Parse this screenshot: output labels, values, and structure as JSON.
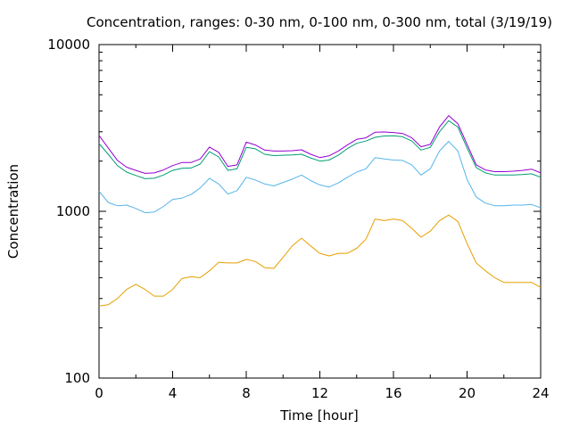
{
  "chart_data": {
    "type": "line",
    "title": "Concentration, ranges: 0-30 nm, 0-100 nm, 0-300 nm, total (3/19/19)",
    "xlabel": "Time [hour]",
    "ylabel": "Concentration",
    "xlim": [
      0,
      24
    ],
    "ylim": [
      100,
      10000
    ],
    "yscale": "log",
    "grid": false,
    "legend": "none",
    "x_ticks": [
      "0",
      "4",
      "8",
      "12",
      "16",
      "20",
      "24"
    ],
    "y_ticks": [
      "100",
      "1000",
      "10000"
    ],
    "x": [
      0,
      0.5,
      1,
      1.5,
      2,
      2.5,
      3,
      3.5,
      4,
      4.5,
      5,
      5.5,
      6,
      6.5,
      7,
      7.5,
      8,
      8.5,
      9,
      9.5,
      10,
      10.5,
      11,
      11.5,
      12,
      12.5,
      13,
      13.5,
      14,
      14.5,
      15,
      15.5,
      16,
      16.5,
      17,
      17.5,
      18,
      18.5,
      19,
      19.5,
      20,
      20.5,
      21,
      21.5,
      22,
      22.5,
      23,
      23.5,
      24
    ],
    "series": [
      {
        "color": "#e69f00",
        "values": [
          270,
          275,
          300,
          340,
          365,
          340,
          310,
          310,
          340,
          395,
          405,
          400,
          440,
          495,
          490,
          490,
          515,
          500,
          460,
          455,
          530,
          620,
          690,
          620,
          560,
          540,
          560,
          560,
          600,
          680,
          900,
          880,
          900,
          880,
          790,
          700,
          760,
          880,
          950,
          870,
          640,
          490,
          440,
          400,
          375,
          375,
          375,
          375,
          350
        ]
      },
      {
        "color": "#56b4e9",
        "values": [
          1320,
          1130,
          1080,
          1090,
          1040,
          980,
          990,
          1070,
          1180,
          1200,
          1260,
          1380,
          1580,
          1460,
          1270,
          1330,
          1600,
          1540,
          1460,
          1420,
          1490,
          1560,
          1650,
          1530,
          1440,
          1400,
          1480,
          1600,
          1720,
          1800,
          2100,
          2060,
          2030,
          2020,
          1900,
          1650,
          1800,
          2300,
          2630,
          2300,
          1550,
          1220,
          1120,
          1080,
          1080,
          1090,
          1090,
          1100,
          1050
        ]
      },
      {
        "color": "#009e73",
        "values": [
          2550,
          2200,
          1880,
          1720,
          1640,
          1570,
          1580,
          1650,
          1760,
          1810,
          1820,
          1920,
          2280,
          2120,
          1760,
          1800,
          2420,
          2370,
          2200,
          2160,
          2170,
          2180,
          2200,
          2090,
          2000,
          2030,
          2170,
          2380,
          2560,
          2640,
          2780,
          2830,
          2840,
          2800,
          2640,
          2330,
          2420,
          3000,
          3500,
          3200,
          2400,
          1830,
          1700,
          1650,
          1650,
          1650,
          1660,
          1680,
          1600
        ]
      },
      {
        "color": "#9400d3",
        "values": [
          2850,
          2400,
          2020,
          1840,
          1760,
          1690,
          1700,
          1770,
          1880,
          1960,
          1960,
          2060,
          2430,
          2260,
          1860,
          1900,
          2600,
          2500,
          2330,
          2300,
          2300,
          2310,
          2340,
          2200,
          2100,
          2150,
          2300,
          2500,
          2700,
          2760,
          2980,
          2990,
          2970,
          2930,
          2760,
          2440,
          2520,
          3200,
          3750,
          3350,
          2520,
          1900,
          1770,
          1730,
          1730,
          1740,
          1760,
          1790,
          1700
        ]
      }
    ]
  }
}
